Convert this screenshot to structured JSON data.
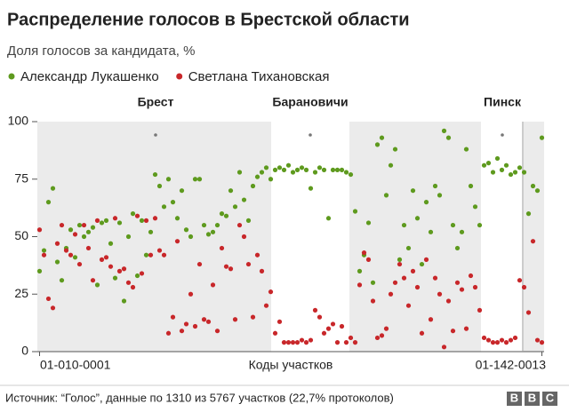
{
  "chart_data": {
    "type": "scatter",
    "title": "Распределение голосов в Брестской области",
    "subtitle": "Доля голосов за кандидата, %",
    "x_label": "Коды участков",
    "source": "Источник: “Голос”, данные по 1310 из 5767 участков (22,7% протоколов)",
    "logo": "BBC",
    "annotations": [
      {
        "label": "Брест"
      },
      {
        "label": "Барановичи"
      },
      {
        "label": "Пинск"
      }
    ],
    "categories": [
      "01-010-0001",
      null,
      null,
      null,
      null,
      null,
      null,
      null,
      null,
      null,
      null,
      null,
      null,
      null,
      null,
      null,
      null,
      null,
      null,
      null,
      null,
      null,
      null,
      null,
      null,
      null,
      null,
      null,
      null,
      null,
      null,
      null,
      null,
      null,
      null,
      null,
      null,
      null,
      null,
      null,
      null,
      null,
      null,
      null,
      null,
      null,
      null,
      null,
      null,
      null,
      null,
      null,
      null,
      null,
      null,
      null,
      null,
      null,
      null,
      null,
      null,
      null,
      null,
      null,
      null,
      null,
      null,
      null,
      null,
      null,
      null,
      null,
      null,
      null,
      null,
      null,
      null,
      null,
      null,
      null,
      null,
      null,
      null,
      null,
      null,
      null,
      null,
      null,
      null,
      null,
      null,
      null,
      null,
      null,
      null,
      null,
      null,
      null,
      null,
      null,
      null,
      null,
      null,
      null,
      null,
      null,
      null,
      null,
      null,
      null,
      null,
      null,
      null,
      "01-142-0013"
    ],
    "series": [
      {
        "name": "Александр Лукашенко",
        "color": "#5e9a1e",
        "values": [
          35,
          44,
          65,
          71,
          39,
          31,
          45,
          53,
          41,
          55,
          50,
          52,
          54,
          29,
          56,
          57,
          47,
          32,
          56,
          22,
          50,
          60,
          33,
          57,
          42,
          52,
          77,
          72,
          63,
          75,
          65,
          58,
          70,
          53,
          50,
          75,
          75,
          55,
          51,
          52,
          55,
          60,
          59,
          70,
          63,
          78,
          66,
          57,
          72,
          76,
          78,
          80,
          75,
          79,
          80,
          79,
          81,
          78,
          79,
          80,
          79,
          71,
          78,
          80,
          79,
          58,
          79,
          79,
          79,
          78,
          77,
          61,
          35,
          42,
          56,
          30,
          90,
          93,
          68,
          81,
          88,
          40,
          55,
          45,
          70,
          58,
          38,
          65,
          52,
          72,
          68,
          96,
          93,
          55,
          45,
          52,
          88,
          72,
          63,
          55,
          81,
          82,
          78,
          84,
          79,
          81,
          77,
          78,
          80,
          78,
          60,
          72,
          70,
          93
        ]
      },
      {
        "name": "Светлана Тихановская",
        "color": "#c8272a",
        "values": [
          53,
          42,
          23,
          19,
          47,
          55,
          44,
          42,
          51,
          38,
          55,
          45,
          31,
          57,
          40,
          41,
          37,
          58,
          35,
          36,
          30,
          28,
          59,
          34,
          57,
          42,
          58,
          44,
          42,
          8,
          15,
          48,
          9,
          12,
          25,
          11,
          38,
          14,
          13,
          29,
          9,
          45,
          37,
          36,
          14,
          55,
          50,
          38,
          15,
          42,
          35,
          20,
          26,
          8,
          13,
          4,
          4,
          4,
          4,
          5,
          4,
          5,
          18,
          15,
          8,
          10,
          12,
          4,
          11,
          4,
          6,
          4,
          29,
          43,
          40,
          22,
          6,
          7,
          10,
          25,
          30,
          38,
          32,
          20,
          35,
          28,
          8,
          40,
          14,
          32,
          25,
          2,
          22,
          9,
          30,
          27,
          10,
          33,
          28,
          18,
          6,
          5,
          4,
          4,
          5,
          4,
          5,
          6,
          31,
          28,
          17,
          48,
          5,
          4
        ]
      }
    ],
    "ylim": [
      0,
      100
    ],
    "yticks": [
      0,
      25,
      50,
      75,
      100
    ],
    "grid": false
  }
}
